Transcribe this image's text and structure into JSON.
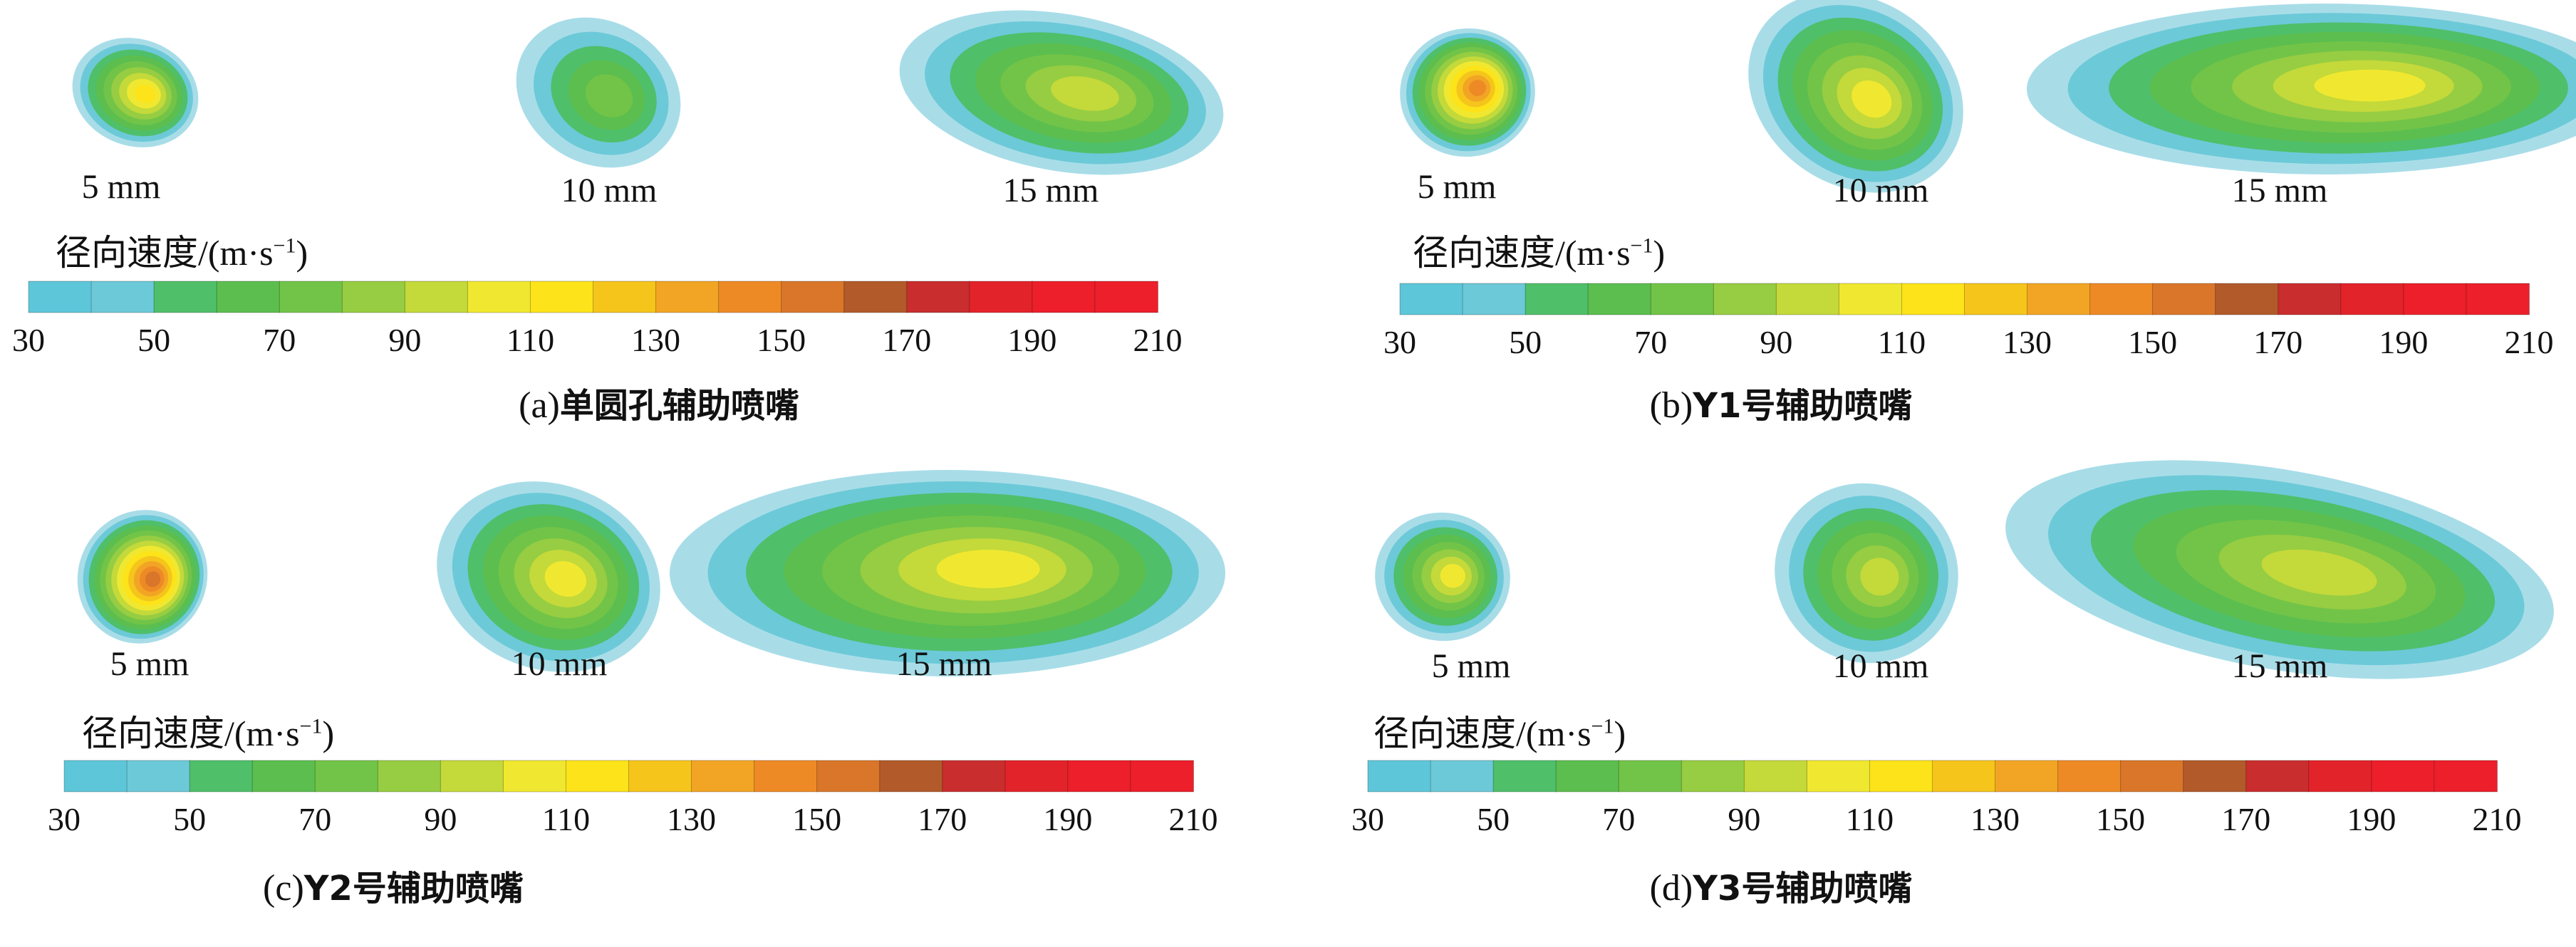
{
  "colorbar_colors": [
    "#5ec6d9",
    "#6cc9d8",
    "#4fbf6a",
    "#5cbe4e",
    "#72c448",
    "#96cd42",
    "#c4d93a",
    "#f0e830",
    "#fce31a",
    "#f5c51c",
    "#f2a524",
    "#ee8a26",
    "#d9762a",
    "#b25a2a",
    "#c92d2d",
    "#e3232a",
    "#ec1f2a",
    "#ec1f2a"
  ],
  "chart_data": [
    {
      "type": "heatmap",
      "caption_prefix": "(a)",
      "caption_cn": "单圆孔辅助喷嘴",
      "colorbar_label": "径向速度/(m·s",
      "colorbar_label_sup": "−1",
      "colorbar_label_suffix": ")",
      "colorbar_ticks": [
        "30",
        "50",
        "70",
        "90",
        "110",
        "130",
        "150",
        "170",
        "190",
        "210"
      ],
      "colorbar_range": [
        30,
        210
      ],
      "distances": [
        "5 mm",
        "10 mm",
        "15 mm"
      ],
      "peak_velocity": [
        110,
        70,
        90
      ]
    },
    {
      "type": "heatmap",
      "caption_prefix": "(b)",
      "caption_cn": "Y1号辅助喷嘴",
      "colorbar_label": "径向速度/(m·s",
      "colorbar_label_sup": "−1",
      "colorbar_label_suffix": ")",
      "colorbar_ticks": [
        "30",
        "50",
        "70",
        "90",
        "110",
        "130",
        "150",
        "170",
        "190",
        "210"
      ],
      "colorbar_range": [
        30,
        210
      ],
      "distances": [
        "5 mm",
        "10 mm",
        "15 mm"
      ],
      "peak_velocity": [
        140,
        100,
        100
      ]
    },
    {
      "type": "heatmap",
      "caption_prefix": "(c)",
      "caption_cn": "Y2号辅助喷嘴",
      "colorbar_label": "径向速度/(m·s",
      "colorbar_label_sup": "−1",
      "colorbar_label_suffix": ")",
      "colorbar_ticks": [
        "30",
        "50",
        "70",
        "90",
        "110",
        "130",
        "150",
        "170",
        "190",
        "210"
      ],
      "colorbar_range": [
        30,
        210
      ],
      "distances": [
        "5 mm",
        "10 mm",
        "15 mm"
      ],
      "peak_velocity": [
        150,
        100,
        100
      ]
    },
    {
      "type": "heatmap",
      "caption_prefix": "(d)",
      "caption_cn": "Y3号辅助喷嘴",
      "colorbar_label": "径向速度/(m·s",
      "colorbar_label_sup": "−1",
      "colorbar_label_suffix": ")",
      "colorbar_ticks": [
        "30",
        "50",
        "70",
        "90",
        "110",
        "130",
        "150",
        "170",
        "190",
        "210"
      ],
      "colorbar_range": [
        30,
        210
      ],
      "distances": [
        "5 mm",
        "10 mm",
        "15 mm"
      ],
      "peak_velocity": [
        100,
        90,
        90
      ]
    }
  ]
}
